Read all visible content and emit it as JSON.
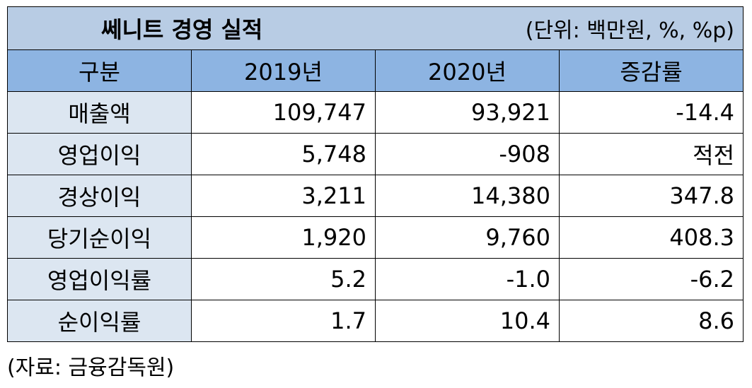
{
  "title": "쎄니트 경영 실적",
  "unit": "(단위: 백만원, %, %p)",
  "headers": [
    "구분",
    "2019년",
    "2020년",
    "증감률"
  ],
  "rows": [
    {
      "label": "매출액",
      "y2019": "109,747",
      "y2020": "93,921",
      "change": "-14.4"
    },
    {
      "label": "영업이익",
      "y2019": "5,748",
      "y2020": "-908",
      "change": "적전"
    },
    {
      "label": "경상이익",
      "y2019": "3,211",
      "y2020": "14,380",
      "change": "347.8"
    },
    {
      "label": "당기순이익",
      "y2019": "1,920",
      "y2020": "9,760",
      "change": "408.3"
    },
    {
      "label": "영업이익률",
      "y2019": "5.2",
      "y2020": "-1.0",
      "change": "-6.2"
    },
    {
      "label": "순이익률",
      "y2019": "1.7",
      "y2020": "10.4",
      "change": "8.6"
    }
  ],
  "source": "(자료: 금융감독원)",
  "colors": {
    "title_bg": "#b8cce4",
    "header_bg": "#8db4e2",
    "label_bg": "#dce6f1"
  }
}
